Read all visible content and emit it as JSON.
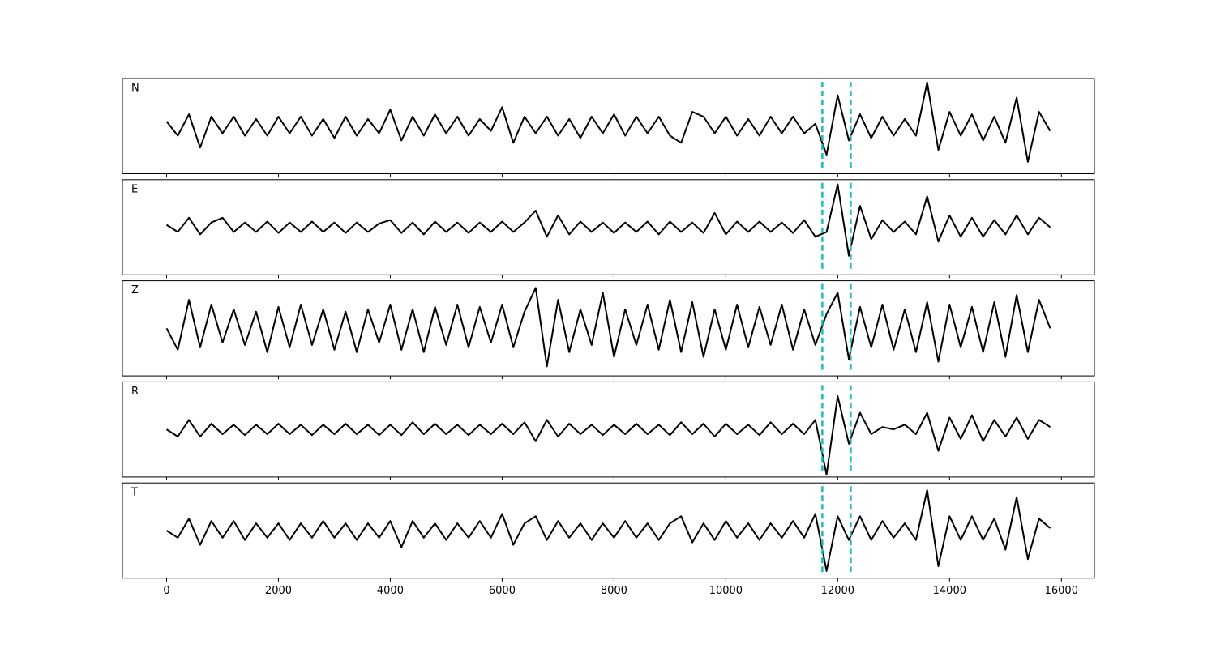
{
  "chart_data": {
    "type": "line",
    "layout": "stacked",
    "x": [
      0,
      200,
      400,
      600,
      800,
      1000,
      1200,
      1400,
      1600,
      1800,
      2000,
      2200,
      2400,
      2600,
      2800,
      3000,
      3200,
      3400,
      3600,
      3800,
      4000,
      4200,
      4400,
      4600,
      4800,
      5000,
      5200,
      5400,
      5600,
      5800,
      6000,
      6200,
      6400,
      6600,
      6800,
      7000,
      7200,
      7400,
      7600,
      7800,
      8000,
      8200,
      8400,
      8600,
      8800,
      9000,
      9200,
      9400,
      9600,
      9800,
      10000,
      10200,
      10400,
      10600,
      10800,
      11000,
      11200,
      11400,
      11600,
      11800,
      12000,
      12200,
      12400,
      12600,
      12800,
      13000,
      13200,
      13400,
      13600,
      13800,
      14000,
      14200,
      14400,
      14600,
      14800,
      15000,
      15200,
      15400,
      15600,
      15800
    ],
    "xlim": [
      -790,
      16590
    ],
    "xticks": [
      0,
      2000,
      4000,
      6000,
      8000,
      10000,
      12000,
      14000,
      16000
    ],
    "ylim": [
      -1,
      1
    ],
    "vlines": [
      11725,
      12232
    ],
    "vline_color": "#17bfb8",
    "series": [
      {
        "name": "N",
        "color": "#000000",
        "values": [
          0.1,
          -0.2,
          0.25,
          -0.45,
          0.2,
          -0.15,
          0.2,
          -0.2,
          0.15,
          -0.2,
          0.2,
          -0.15,
          0.2,
          -0.2,
          0.15,
          -0.25,
          0.2,
          -0.2,
          0.15,
          -0.15,
          0.35,
          -0.3,
          0.2,
          -0.2,
          0.25,
          -0.15,
          0.2,
          -0.2,
          0.15,
          -0.1,
          0.4,
          -0.35,
          0.2,
          -0.15,
          0.2,
          -0.2,
          0.15,
          -0.25,
          0.2,
          -0.15,
          0.25,
          -0.2,
          0.2,
          -0.15,
          0.2,
          -0.2,
          -0.35,
          0.3,
          0.2,
          -0.15,
          0.2,
          -0.2,
          0.15,
          -0.2,
          0.2,
          -0.15,
          0.2,
          -0.15,
          0.05,
          -0.6,
          0.65,
          -0.3,
          0.25,
          -0.25,
          0.2,
          -0.2,
          0.15,
          -0.2,
          0.92,
          -0.5,
          0.3,
          -0.2,
          0.25,
          -0.3,
          0.2,
          -0.35,
          0.6,
          -0.75,
          0.3,
          -0.1
        ]
      },
      {
        "name": "E",
        "color": "#000000",
        "values": [
          0.05,
          -0.1,
          0.2,
          -0.15,
          0.1,
          0.2,
          -0.1,
          0.1,
          -0.1,
          0.12,
          -0.12,
          0.1,
          -0.1,
          0.12,
          -0.1,
          0.1,
          -0.12,
          0.1,
          -0.1,
          0.08,
          0.15,
          -0.12,
          0.1,
          -0.15,
          0.12,
          -0.1,
          0.1,
          -0.12,
          0.1,
          -0.1,
          0.12,
          -0.1,
          0.1,
          0.35,
          -0.2,
          0.25,
          -0.15,
          0.12,
          -0.1,
          0.1,
          -0.12,
          0.1,
          -0.1,
          0.12,
          -0.15,
          0.12,
          -0.1,
          0.1,
          -0.12,
          0.3,
          -0.15,
          0.12,
          -0.1,
          0.12,
          -0.1,
          0.1,
          -0.12,
          0.15,
          -0.2,
          -0.1,
          0.9,
          -0.6,
          0.45,
          -0.25,
          0.15,
          -0.1,
          0.12,
          -0.15,
          0.65,
          -0.3,
          0.25,
          -0.2,
          0.2,
          -0.2,
          0.15,
          -0.15,
          0.25,
          -0.15,
          0.2,
          0.0
        ]
      },
      {
        "name": "Z",
        "color": "#000000",
        "values": [
          0.0,
          -0.45,
          0.6,
          -0.4,
          0.5,
          -0.3,
          0.4,
          -0.35,
          0.35,
          -0.5,
          0.45,
          -0.4,
          0.5,
          -0.35,
          0.4,
          -0.45,
          0.35,
          -0.5,
          0.4,
          -0.3,
          0.5,
          -0.45,
          0.4,
          -0.5,
          0.45,
          -0.35,
          0.5,
          -0.4,
          0.45,
          -0.3,
          0.5,
          -0.4,
          0.35,
          0.85,
          -0.8,
          0.6,
          -0.5,
          0.4,
          -0.35,
          0.75,
          -0.6,
          0.4,
          -0.35,
          0.5,
          -0.45,
          0.6,
          -0.5,
          0.55,
          -0.6,
          0.4,
          -0.45,
          0.5,
          -0.4,
          0.45,
          -0.35,
          0.5,
          -0.45,
          0.4,
          -0.35,
          0.3,
          0.75,
          -0.65,
          0.45,
          -0.4,
          0.5,
          -0.45,
          0.4,
          -0.5,
          0.55,
          -0.7,
          0.5,
          -0.4,
          0.45,
          -0.5,
          0.55,
          -0.6,
          0.7,
          -0.5,
          0.6,
          0.0
        ]
      },
      {
        "name": "R",
        "color": "#000000",
        "values": [
          0.0,
          -0.15,
          0.2,
          -0.15,
          0.12,
          -0.1,
          0.1,
          -0.12,
          0.1,
          -0.1,
          0.12,
          -0.1,
          0.1,
          -0.12,
          0.1,
          -0.1,
          0.12,
          -0.1,
          0.1,
          -0.12,
          0.1,
          -0.12,
          0.15,
          -0.1,
          0.12,
          -0.1,
          0.1,
          -0.12,
          0.1,
          -0.1,
          0.12,
          -0.1,
          0.15,
          -0.25,
          0.2,
          -0.15,
          0.12,
          -0.1,
          0.1,
          -0.12,
          0.1,
          -0.1,
          0.12,
          -0.1,
          0.1,
          -0.12,
          0.15,
          -0.1,
          0.12,
          -0.15,
          0.12,
          -0.1,
          0.1,
          -0.12,
          0.15,
          -0.1,
          0.12,
          -0.1,
          0.2,
          -0.95,
          0.7,
          -0.3,
          0.35,
          -0.1,
          0.05,
          0.0,
          0.1,
          -0.1,
          0.35,
          -0.45,
          0.25,
          -0.2,
          0.3,
          -0.25,
          0.2,
          -0.15,
          0.25,
          -0.2,
          0.2,
          0.05
        ]
      },
      {
        "name": "T",
        "color": "#000000",
        "values": [
          0.0,
          -0.15,
          0.25,
          -0.3,
          0.2,
          -0.15,
          0.2,
          -0.2,
          0.15,
          -0.15,
          0.15,
          -0.2,
          0.15,
          -0.15,
          0.2,
          -0.15,
          0.15,
          -0.2,
          0.15,
          -0.15,
          0.2,
          -0.35,
          0.2,
          -0.15,
          0.15,
          -0.2,
          0.15,
          -0.15,
          0.2,
          -0.15,
          0.35,
          -0.3,
          0.15,
          0.3,
          -0.2,
          0.2,
          -0.15,
          0.15,
          -0.2,
          0.15,
          -0.15,
          0.2,
          -0.15,
          0.15,
          -0.2,
          0.15,
          0.3,
          -0.25,
          0.15,
          -0.2,
          0.2,
          -0.15,
          0.15,
          -0.2,
          0.15,
          -0.15,
          0.2,
          -0.15,
          0.35,
          -0.85,
          0.3,
          -0.2,
          0.3,
          -0.2,
          0.2,
          -0.15,
          0.15,
          -0.2,
          0.85,
          -0.75,
          0.3,
          -0.2,
          0.3,
          -0.2,
          0.25,
          -0.4,
          0.7,
          -0.6,
          0.25,
          0.05
        ]
      }
    ]
  }
}
